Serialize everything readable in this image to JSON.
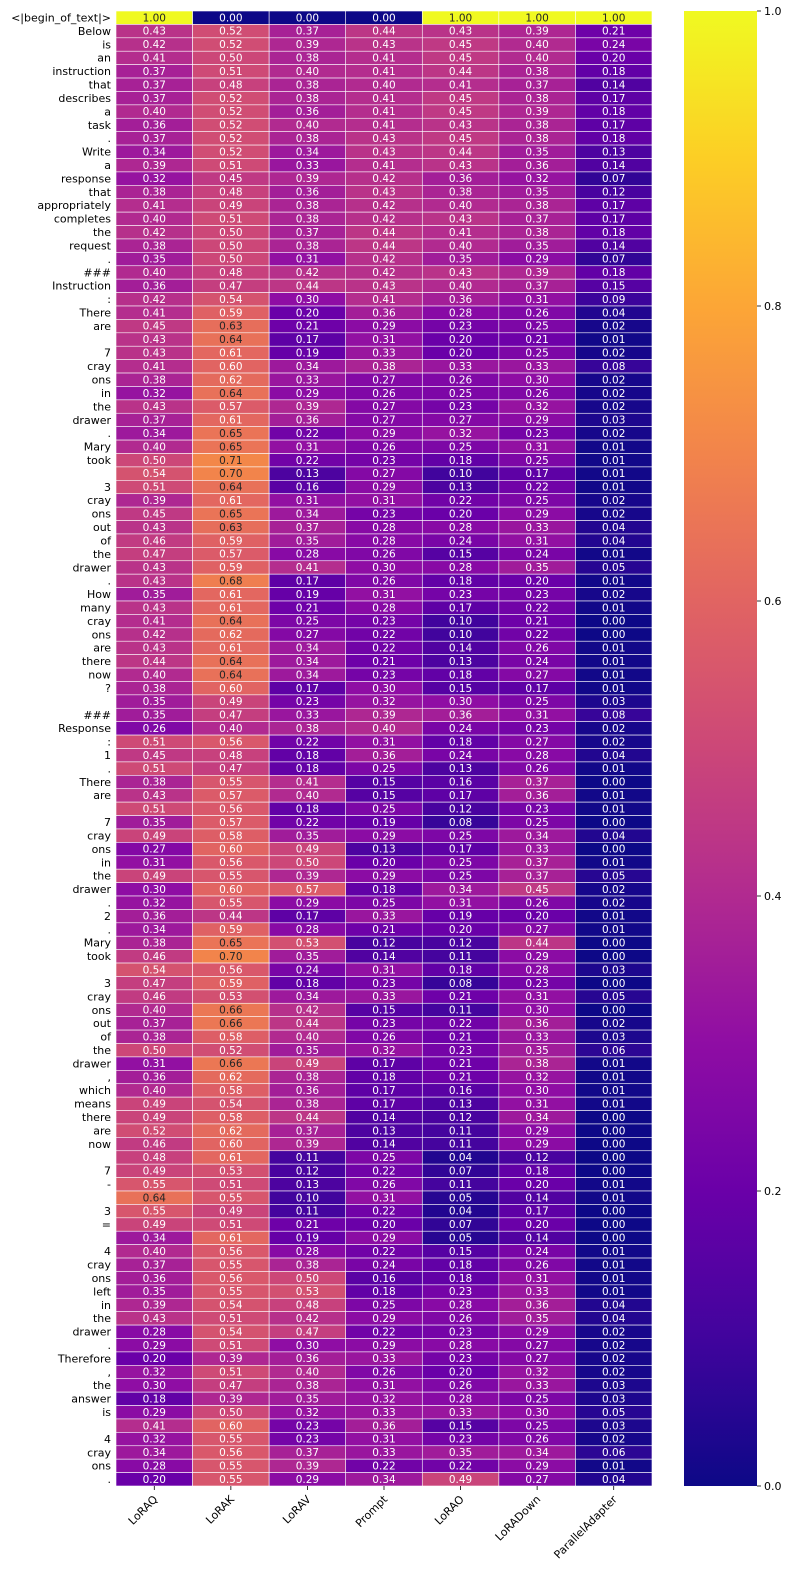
{
  "chart_data": {
    "type": "heatmap",
    "colormap": "plasma",
    "columns": [
      "LoRAQ",
      "LoRAK",
      "LoRAV",
      "Prompt",
      "LoRAO",
      "LoRADown",
      "ParallelAdapter"
    ],
    "rows": [
      "<|begin_of_text|>",
      "Below",
      "is",
      "an",
      "instruction",
      "that",
      "describes",
      "a",
      "task",
      ".",
      "Write",
      "a",
      "response",
      "that",
      "appropriately",
      "completes",
      "the",
      "request",
      ".",
      "###",
      "Instruction",
      ":",
      "There",
      "are",
      " ",
      "7",
      "cray",
      "ons",
      "in",
      "the",
      "drawer",
      ".",
      "Mary",
      "took",
      " ",
      "3",
      "cray",
      "ons",
      "out",
      "of",
      "the",
      "drawer",
      ".",
      "How",
      "many",
      "cray",
      "ons",
      "are",
      "there",
      "now",
      "?",
      " ",
      "###",
      "Response",
      ":",
      "1",
      ".",
      "There",
      "are",
      " ",
      "7",
      "cray",
      "ons",
      "in",
      "the",
      "drawer",
      ".",
      "2",
      ".",
      "Mary",
      "took",
      " ",
      "3",
      "cray",
      "ons",
      "out",
      "of",
      "the",
      "drawer",
      ",",
      "which",
      "means",
      "there",
      "are",
      "now",
      " ",
      "7",
      " -",
      " ",
      "3",
      "=",
      " ",
      "4",
      "cray",
      "ons",
      "left",
      "in",
      "the",
      "drawer",
      ".",
      "Therefore",
      ",",
      "the",
      "answer",
      "is",
      " ",
      "4",
      "cray",
      "ons",
      "."
    ],
    "values": [
      [
        1.0,
        0.0,
        0.0,
        0.0,
        1.0,
        1.0,
        1.0
      ],
      [
        0.43,
        0.52,
        0.37,
        0.44,
        0.43,
        0.39,
        0.21
      ],
      [
        0.42,
        0.52,
        0.39,
        0.43,
        0.45,
        0.4,
        0.24
      ],
      [
        0.41,
        0.5,
        0.38,
        0.41,
        0.45,
        0.4,
        0.2
      ],
      [
        0.37,
        0.51,
        0.4,
        0.41,
        0.44,
        0.38,
        0.18
      ],
      [
        0.37,
        0.48,
        0.38,
        0.4,
        0.41,
        0.37,
        0.14
      ],
      [
        0.37,
        0.52,
        0.38,
        0.41,
        0.45,
        0.38,
        0.17
      ],
      [
        0.4,
        0.52,
        0.36,
        0.41,
        0.45,
        0.39,
        0.18
      ],
      [
        0.36,
        0.52,
        0.4,
        0.41,
        0.43,
        0.38,
        0.17
      ],
      [
        0.37,
        0.52,
        0.38,
        0.43,
        0.45,
        0.38,
        0.18
      ],
      [
        0.34,
        0.52,
        0.34,
        0.43,
        0.44,
        0.35,
        0.13
      ],
      [
        0.39,
        0.51,
        0.33,
        0.41,
        0.43,
        0.36,
        0.14
      ],
      [
        0.32,
        0.45,
        0.39,
        0.42,
        0.36,
        0.32,
        0.07
      ],
      [
        0.38,
        0.48,
        0.36,
        0.43,
        0.38,
        0.35,
        0.12
      ],
      [
        0.41,
        0.49,
        0.38,
        0.42,
        0.4,
        0.38,
        0.17
      ],
      [
        0.4,
        0.51,
        0.38,
        0.42,
        0.43,
        0.37,
        0.17
      ],
      [
        0.42,
        0.5,
        0.37,
        0.44,
        0.41,
        0.38,
        0.18
      ],
      [
        0.38,
        0.5,
        0.38,
        0.44,
        0.4,
        0.35,
        0.14
      ],
      [
        0.35,
        0.5,
        0.31,
        0.42,
        0.35,
        0.29,
        0.07
      ],
      [
        0.4,
        0.48,
        0.42,
        0.42,
        0.43,
        0.39,
        0.18
      ],
      [
        0.36,
        0.47,
        0.44,
        0.43,
        0.4,
        0.37,
        0.15
      ],
      [
        0.42,
        0.54,
        0.3,
        0.41,
        0.36,
        0.31,
        0.09
      ],
      [
        0.41,
        0.59,
        0.2,
        0.36,
        0.28,
        0.26,
        0.04
      ],
      [
        0.45,
        0.63,
        0.21,
        0.29,
        0.23,
        0.25,
        0.02
      ],
      [
        0.43,
        0.64,
        0.17,
        0.31,
        0.2,
        0.21,
        0.01
      ],
      [
        0.43,
        0.61,
        0.19,
        0.33,
        0.2,
        0.25,
        0.02
      ],
      [
        0.41,
        0.6,
        0.34,
        0.38,
        0.33,
        0.33,
        0.08
      ],
      [
        0.38,
        0.62,
        0.33,
        0.27,
        0.26,
        0.3,
        0.02
      ],
      [
        0.32,
        0.64,
        0.29,
        0.26,
        0.25,
        0.26,
        0.02
      ],
      [
        0.43,
        0.57,
        0.39,
        0.27,
        0.23,
        0.32,
        0.02
      ],
      [
        0.37,
        0.61,
        0.36,
        0.27,
        0.27,
        0.29,
        0.03
      ],
      [
        0.34,
        0.65,
        0.22,
        0.29,
        0.32,
        0.23,
        0.02
      ],
      [
        0.4,
        0.65,
        0.31,
        0.26,
        0.25,
        0.31,
        0.01
      ],
      [
        0.5,
        0.71,
        0.22,
        0.23,
        0.18,
        0.25,
        0.01
      ],
      [
        0.54,
        0.7,
        0.13,
        0.27,
        0.1,
        0.17,
        0.01
      ],
      [
        0.51,
        0.64,
        0.16,
        0.29,
        0.13,
        0.22,
        0.01
      ],
      [
        0.39,
        0.61,
        0.31,
        0.31,
        0.22,
        0.25,
        0.02
      ],
      [
        0.45,
        0.65,
        0.34,
        0.23,
        0.2,
        0.29,
        0.02
      ],
      [
        0.43,
        0.63,
        0.37,
        0.28,
        0.28,
        0.33,
        0.04
      ],
      [
        0.46,
        0.59,
        0.35,
        0.28,
        0.24,
        0.31,
        0.04
      ],
      [
        0.47,
        0.57,
        0.28,
        0.26,
        0.15,
        0.24,
        0.01
      ],
      [
        0.43,
        0.59,
        0.41,
        0.3,
        0.28,
        0.35,
        0.05
      ],
      [
        0.43,
        0.68,
        0.17,
        0.26,
        0.18,
        0.2,
        0.01
      ],
      [
        0.35,
        0.61,
        0.19,
        0.31,
        0.23,
        0.23,
        0.02
      ],
      [
        0.43,
        0.61,
        0.21,
        0.28,
        0.17,
        0.22,
        0.01
      ],
      [
        0.41,
        0.64,
        0.25,
        0.23,
        0.1,
        0.21,
        0.0
      ],
      [
        0.42,
        0.62,
        0.27,
        0.22,
        0.1,
        0.22,
        0.0
      ],
      [
        0.43,
        0.61,
        0.34,
        0.22,
        0.14,
        0.26,
        0.01
      ],
      [
        0.44,
        0.64,
        0.34,
        0.21,
        0.13,
        0.24,
        0.01
      ],
      [
        0.4,
        0.64,
        0.34,
        0.23,
        0.18,
        0.27,
        0.01
      ],
      [
        0.38,
        0.6,
        0.17,
        0.3,
        0.15,
        0.17,
        0.01
      ],
      [
        0.35,
        0.49,
        0.23,
        0.32,
        0.3,
        0.25,
        0.03
      ],
      [
        0.35,
        0.47,
        0.33,
        0.39,
        0.36,
        0.31,
        0.08
      ],
      [
        0.26,
        0.4,
        0.38,
        0.4,
        0.24,
        0.23,
        0.02
      ],
      [
        0.51,
        0.56,
        0.22,
        0.31,
        0.18,
        0.27,
        0.02
      ],
      [
        0.45,
        0.48,
        0.18,
        0.36,
        0.24,
        0.28,
        0.04
      ],
      [
        0.51,
        0.47,
        0.18,
        0.25,
        0.13,
        0.26,
        0.01
      ],
      [
        0.38,
        0.55,
        0.41,
        0.15,
        0.16,
        0.37,
        0.0
      ],
      [
        0.43,
        0.57,
        0.4,
        0.15,
        0.17,
        0.36,
        0.01
      ],
      [
        0.51,
        0.56,
        0.18,
        0.25,
        0.12,
        0.23,
        0.01
      ],
      [
        0.35,
        0.57,
        0.22,
        0.19,
        0.08,
        0.25,
        0.0
      ],
      [
        0.49,
        0.58,
        0.35,
        0.29,
        0.25,
        0.34,
        0.04
      ],
      [
        0.27,
        0.6,
        0.49,
        0.13,
        0.17,
        0.33,
        0.0
      ],
      [
        0.31,
        0.56,
        0.5,
        0.2,
        0.25,
        0.37,
        0.01
      ],
      [
        0.49,
        0.55,
        0.39,
        0.29,
        0.25,
        0.37,
        0.05
      ],
      [
        0.3,
        0.6,
        0.57,
        0.18,
        0.34,
        0.45,
        0.02
      ],
      [
        0.32,
        0.55,
        0.29,
        0.25,
        0.31,
        0.26,
        0.02
      ],
      [
        0.36,
        0.44,
        0.17,
        0.33,
        0.19,
        0.2,
        0.01
      ],
      [
        0.34,
        0.59,
        0.28,
        0.21,
        0.2,
        0.27,
        0.01
      ],
      [
        0.38,
        0.65,
        0.53,
        0.12,
        0.12,
        0.44,
        0.0
      ],
      [
        0.46,
        0.7,
        0.35,
        0.14,
        0.11,
        0.29,
        0.0
      ],
      [
        0.54,
        0.56,
        0.24,
        0.31,
        0.18,
        0.28,
        0.03
      ],
      [
        0.47,
        0.59,
        0.18,
        0.23,
        0.08,
        0.23,
        0.0
      ],
      [
        0.46,
        0.53,
        0.34,
        0.33,
        0.21,
        0.31,
        0.05
      ],
      [
        0.4,
        0.66,
        0.42,
        0.15,
        0.11,
        0.3,
        0.0
      ],
      [
        0.37,
        0.66,
        0.44,
        0.23,
        0.22,
        0.36,
        0.02
      ],
      [
        0.38,
        0.58,
        0.4,
        0.26,
        0.21,
        0.33,
        0.03
      ],
      [
        0.5,
        0.52,
        0.35,
        0.32,
        0.23,
        0.35,
        0.06
      ],
      [
        0.31,
        0.66,
        0.49,
        0.17,
        0.21,
        0.38,
        0.01
      ],
      [
        0.36,
        0.62,
        0.38,
        0.18,
        0.21,
        0.32,
        0.01
      ],
      [
        0.4,
        0.58,
        0.36,
        0.17,
        0.16,
        0.3,
        0.01
      ],
      [
        0.49,
        0.54,
        0.38,
        0.17,
        0.13,
        0.31,
        0.01
      ],
      [
        0.49,
        0.58,
        0.44,
        0.14,
        0.12,
        0.34,
        0.0
      ],
      [
        0.52,
        0.62,
        0.37,
        0.13,
        0.11,
        0.29,
        0.0
      ],
      [
        0.46,
        0.6,
        0.39,
        0.14,
        0.11,
        0.29,
        0.0
      ],
      [
        0.48,
        0.61,
        0.11,
        0.25,
        0.04,
        0.12,
        0.0
      ],
      [
        0.49,
        0.53,
        0.12,
        0.22,
        0.07,
        0.18,
        0.0
      ],
      [
        0.55,
        0.51,
        0.13,
        0.26,
        0.11,
        0.2,
        0.01
      ],
      [
        0.64,
        0.55,
        0.1,
        0.31,
        0.05,
        0.14,
        0.01
      ],
      [
        0.55,
        0.49,
        0.11,
        0.22,
        0.04,
        0.17,
        0.0
      ],
      [
        0.49,
        0.51,
        0.21,
        0.2,
        0.07,
        0.2,
        0.0
      ],
      [
        0.34,
        0.61,
        0.19,
        0.29,
        0.05,
        0.14,
        0.0
      ],
      [
        0.4,
        0.56,
        0.28,
        0.22,
        0.15,
        0.24,
        0.01
      ],
      [
        0.37,
        0.55,
        0.38,
        0.24,
        0.18,
        0.26,
        0.01
      ],
      [
        0.36,
        0.56,
        0.5,
        0.16,
        0.18,
        0.31,
        0.01
      ],
      [
        0.35,
        0.55,
        0.53,
        0.18,
        0.23,
        0.33,
        0.01
      ],
      [
        0.39,
        0.54,
        0.48,
        0.25,
        0.28,
        0.36,
        0.04
      ],
      [
        0.43,
        0.51,
        0.42,
        0.29,
        0.26,
        0.35,
        0.04
      ],
      [
        0.28,
        0.54,
        0.47,
        0.22,
        0.23,
        0.29,
        0.02
      ],
      [
        0.29,
        0.51,
        0.3,
        0.29,
        0.28,
        0.27,
        0.02
      ],
      [
        0.2,
        0.39,
        0.36,
        0.33,
        0.23,
        0.27,
        0.02
      ],
      [
        0.32,
        0.51,
        0.4,
        0.26,
        0.2,
        0.32,
        0.02
      ],
      [
        0.3,
        0.47,
        0.38,
        0.31,
        0.26,
        0.33,
        0.03
      ],
      [
        0.18,
        0.39,
        0.35,
        0.32,
        0.28,
        0.25,
        0.03
      ],
      [
        0.29,
        0.5,
        0.32,
        0.33,
        0.33,
        0.3,
        0.05
      ],
      [
        0.41,
        0.6,
        0.23,
        0.36,
        0.15,
        0.25,
        0.03
      ],
      [
        0.32,
        0.55,
        0.23,
        0.31,
        0.23,
        0.26,
        0.02
      ],
      [
        0.34,
        0.56,
        0.37,
        0.33,
        0.35,
        0.34,
        0.06
      ],
      [
        0.28,
        0.55,
        0.39,
        0.22,
        0.22,
        0.29,
        0.01
      ],
      [
        0.2,
        0.55,
        0.29,
        0.34,
        0.49,
        0.27,
        0.04
      ]
    ],
    "value_format": "0.00",
    "colorbar": {
      "vmin": 0.0,
      "vmax": 1.0,
      "ticks": [
        0.0,
        0.2,
        0.4,
        0.6,
        0.8,
        1.0
      ],
      "tick_labels": [
        "0.0",
        "0.2",
        "0.4",
        "0.6",
        "0.8",
        "1.0"
      ]
    },
    "title": "",
    "xlabel": "",
    "ylabel": ""
  }
}
